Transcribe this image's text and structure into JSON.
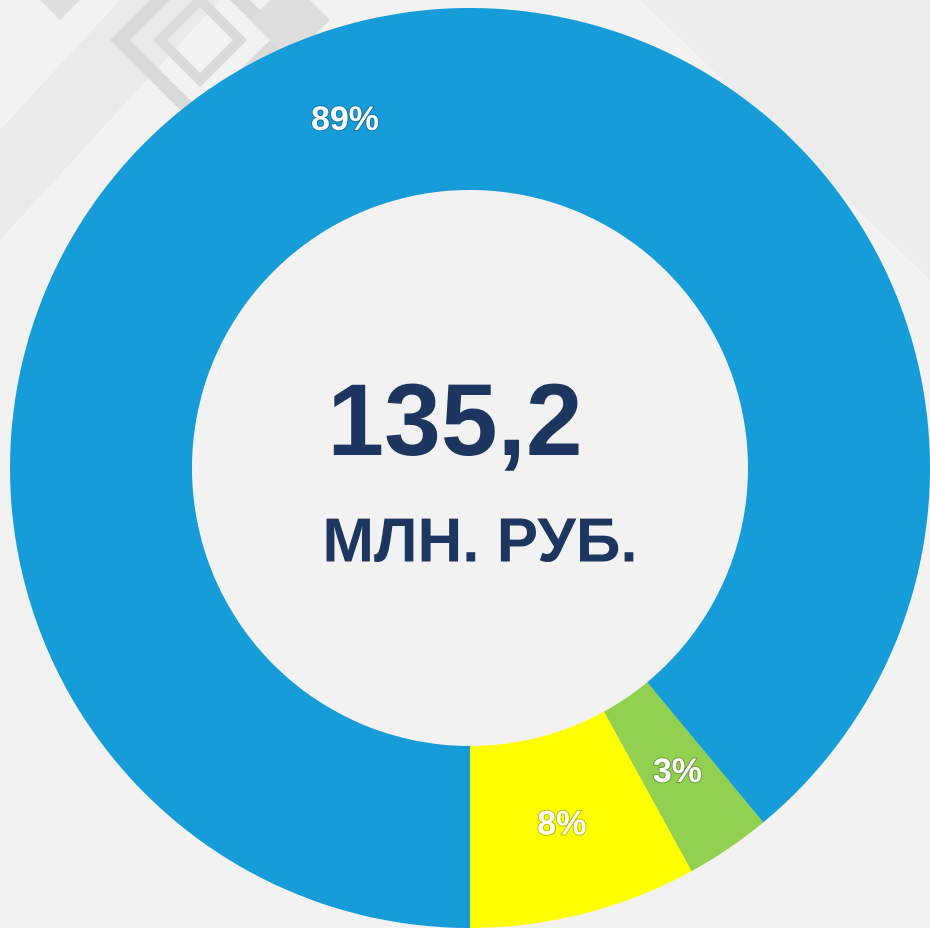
{
  "chart_data": {
    "type": "pie",
    "values": [
      89,
      3,
      8
    ],
    "value_labels": [
      "89%",
      "3%",
      "8%"
    ],
    "colors": [
      "#169dd9",
      "#92d050",
      "#ffff00"
    ],
    "annotations": [
      "135,2",
      "МЛН. РУБ."
    ]
  }
}
